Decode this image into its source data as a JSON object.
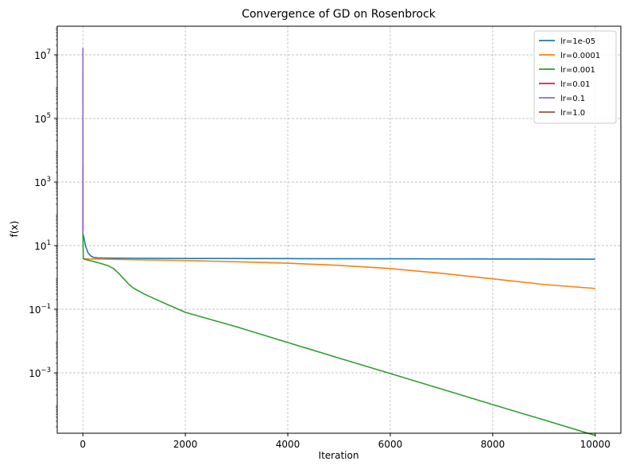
{
  "chart_data": {
    "type": "line",
    "title": "Convergence of GD on Rosenbrock",
    "xlabel": "Iteration",
    "ylabel": "f(x)",
    "xlim": [
      -500,
      10500
    ],
    "ylim_log10": [
      -4.9,
      7.9
    ],
    "yscale": "log",
    "grid": true,
    "legend_position": "top-right",
    "x_ticks": [
      0,
      2000,
      4000,
      6000,
      8000,
      10000
    ],
    "x_tick_labels": [
      "0",
      "2000",
      "4000",
      "6000",
      "8000",
      "10000"
    ],
    "y_ticks": [
      0.001,
      0.1,
      10,
      1000,
      100000,
      10000000
    ],
    "y_tick_bases": [
      "10",
      "10",
      "10",
      "10",
      "10",
      "10"
    ],
    "y_tick_exps": [
      "−3",
      "−1",
      "1",
      "3",
      "5",
      "7"
    ],
    "series": [
      {
        "name": "lr=1e-05",
        "color": "#1f77b4",
        "x": [
          0,
          20,
          50,
          100,
          150,
          200,
          300,
          500,
          1000,
          2000,
          4000,
          6000,
          8000,
          10000
        ],
        "y": [
          24,
          18,
          10,
          6,
          4.8,
          4.3,
          4.1,
          4.05,
          4.0,
          3.95,
          3.9,
          3.85,
          3.8,
          3.75
        ]
      },
      {
        "name": "lr=0.0001",
        "color": "#ff7f0e",
        "x": [
          0,
          20,
          50,
          100,
          200,
          300,
          500,
          1000,
          2000,
          3000,
          4000,
          5000,
          6000,
          7000,
          8000,
          9000,
          10000
        ],
        "y": [
          4.0,
          3.9,
          3.85,
          3.8,
          3.8,
          3.8,
          3.75,
          3.6,
          3.4,
          3.1,
          2.8,
          2.4,
          1.9,
          1.35,
          0.9,
          0.6,
          0.45
        ]
      },
      {
        "name": "lr=0.001",
        "color": "#2ca02c",
        "x": [
          0,
          10,
          30,
          100,
          200,
          300,
          400,
          500,
          600,
          700,
          800,
          900,
          1000,
          1200,
          1500,
          2000,
          3000,
          4000,
          5000,
          6000,
          7000,
          8000,
          9000,
          10000
        ],
        "y": [
          22,
          3.9,
          3.7,
          3.5,
          3.2,
          2.9,
          2.6,
          2.3,
          1.9,
          1.35,
          0.9,
          0.6,
          0.45,
          0.3,
          0.18,
          0.08,
          0.028,
          0.009,
          0.0029,
          0.00095,
          0.00031,
          0.0001,
          3.3e-05,
          1.07e-05
        ]
      },
      {
        "name": "lr=0.01",
        "color": "#d62728",
        "x": [
          0,
          1
        ],
        "y": [
          24,
          4000
        ]
      },
      {
        "name": "lr=0.1",
        "color": "#9467bd",
        "x": [
          0,
          1,
          2,
          3
        ],
        "y": [
          24,
          16000000,
          2000000,
          30
        ]
      },
      {
        "name": "lr=1.0",
        "color": "#8c564b",
        "x": [
          0,
          1
        ],
        "y": [
          24,
          24
        ]
      }
    ]
  }
}
